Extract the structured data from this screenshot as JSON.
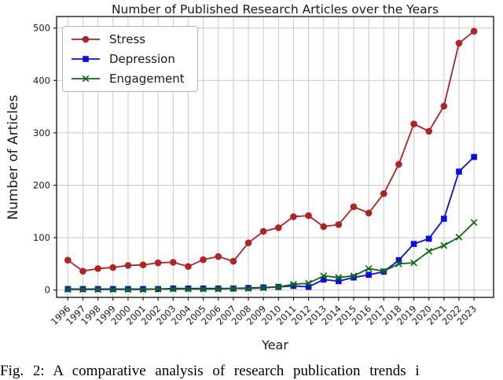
{
  "caption": "Fig. 2: A comparative analysis of research publication trends i",
  "colors": {
    "stress": "#b22222",
    "depression": "#0a0af0",
    "engagement": "#0e6b0e",
    "grid": "#c9c9c9",
    "spine": "#1f1f1f",
    "text": "#1a1a1a"
  },
  "chart_data": {
    "type": "line",
    "title": "Number of Published Research Articles over the Years",
    "xlabel": "Year",
    "ylabel": "Number of Articles",
    "x": [
      1996,
      1997,
      1998,
      1999,
      2000,
      2001,
      2002,
      2003,
      2004,
      2005,
      2006,
      2007,
      2008,
      2009,
      2010,
      2011,
      2012,
      2013,
      2014,
      2015,
      2016,
      2017,
      2018,
      2019,
      2020,
      2021,
      2022,
      2023
    ],
    "series": [
      {
        "name": "Stress",
        "color": "#b22222",
        "marker": "circle",
        "values": [
          57,
          36,
          41,
          43,
          47,
          48,
          52,
          53,
          45,
          58,
          64,
          55,
          90,
          112,
          119,
          140,
          142,
          121,
          125,
          159,
          147,
          184,
          240,
          317,
          303,
          351,
          471,
          494
        ]
      },
      {
        "name": "Depression",
        "color": "#0a0af0",
        "marker": "square",
        "values": [
          2,
          2,
          2,
          2,
          2,
          2,
          2,
          3,
          3,
          3,
          3,
          3,
          4,
          5,
          6,
          8,
          6,
          20,
          17,
          24,
          29,
          35,
          57,
          88,
          98,
          136,
          226,
          254
        ]
      },
      {
        "name": "Engagement",
        "color": "#0e6b0e",
        "marker": "x",
        "values": [
          1,
          1,
          1,
          1,
          1,
          1,
          2,
          2,
          2,
          2,
          2,
          3,
          3,
          4,
          6,
          11,
          13,
          27,
          24,
          27,
          41,
          36,
          50,
          52,
          74,
          85,
          101,
          129
        ]
      }
    ],
    "yticks": [
      0,
      100,
      200,
      300,
      400,
      500
    ],
    "ylim": [
      -14,
      522
    ],
    "xlim": [
      1995.25,
      2024.3
    ],
    "grid": true,
    "legend_position": "upper left"
  }
}
